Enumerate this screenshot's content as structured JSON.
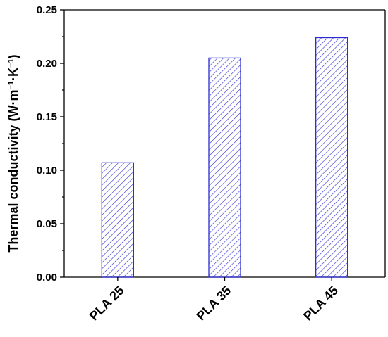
{
  "chart_data": {
    "type": "bar",
    "categories": [
      "PLA 25",
      "PLA 35",
      "PLA 45"
    ],
    "values": [
      0.107,
      0.205,
      0.224
    ],
    "ylabel_main": "Thermal conductivity (W·m",
    "ylabel_sup1": "−1",
    "ylabel_mid": "·K",
    "ylabel_sup2": "−1",
    "ylabel_end": ")",
    "ylim": [
      0,
      0.25
    ],
    "yticks": [
      "0.00",
      "0.05",
      "0.10",
      "0.15",
      "0.20",
      "0.25"
    ],
    "grid": false,
    "bar_fill": "hatched",
    "colors": {
      "bar_edge": "#2b2bd0",
      "hatch": "#2b2bd0",
      "axis": "#000000"
    }
  }
}
